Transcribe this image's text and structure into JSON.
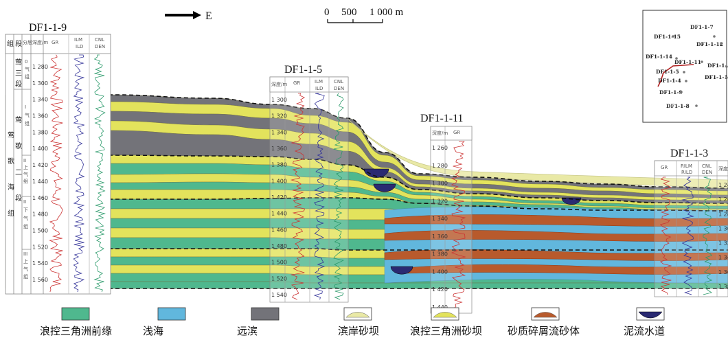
{
  "colors": {
    "front": "#4fb88e",
    "shallow": "#61b7dd",
    "prodelta": "#737379",
    "beach": "#e9e9a6",
    "deltabar": "#e3e35c",
    "debris": "#b85a2c",
    "channel": "#2a2a72",
    "deltabar_stroke": "#b8b83a",
    "beach_stroke": "#c9c98a"
  },
  "direction": {
    "arrow_label": "E"
  },
  "scale_bar": {
    "labels": [
      "0",
      "500",
      "1 000 m"
    ]
  },
  "wells": [
    {
      "id": "DF1-1-9",
      "depths": [
        "1 280",
        "1 300",
        "1 340",
        "1 360",
        "1 380",
        "1 400",
        "1 420",
        "1 440",
        "1 460",
        "1 480",
        "1 500",
        "1 520",
        "1 540",
        "1 560"
      ]
    },
    {
      "id": "DF1-1-5",
      "depths": [
        "1 300",
        "1 320",
        "1 340",
        "1 360",
        "1 380",
        "1 400",
        "1 420",
        "1 440",
        "1 460",
        "1 480",
        "1 500",
        "1 520",
        "1 540"
      ]
    },
    {
      "id": "DF1-1-11",
      "depths": [
        "1 260",
        "1 280",
        "1 300",
        "1 320",
        "1 340",
        "1 360",
        "1 380",
        "1 400",
        "1 420",
        "1 440"
      ]
    },
    {
      "id": "DF1-1-3",
      "depths": [
        "1 24",
        "1 26",
        "1 28",
        "1 30",
        "1 32",
        "1 34",
        "1 36",
        "1 38"
      ]
    }
  ],
  "header_columns": {
    "col1": "组",
    "col2": "段",
    "col3": "分层",
    "depth": "深度/m",
    "gr": "GR",
    "ilm": "ILM",
    "ild": "ILD",
    "cnl": "CNL",
    "den": "DEN",
    "rild": "RILD",
    "rilm": "RILM"
  },
  "stratigraphy": {
    "formation": [
      "莺",
      "歌",
      "海",
      "组"
    ],
    "member_top": [
      "莺",
      "三",
      "段"
    ],
    "member": [
      "莺",
      "歌",
      "二",
      "段"
    ],
    "gas_groups": [
      [
        "0",
        "气",
        "组"
      ],
      [
        "I",
        "气",
        "组"
      ],
      [
        "II",
        "上",
        "气",
        "组"
      ],
      [
        "II",
        "下",
        "气",
        "组"
      ],
      [
        "III",
        "上",
        "气",
        "组"
      ]
    ]
  },
  "inset_map": {
    "wells": [
      "DF1-1-7",
      "DF1-1-15",
      "DF1-1-12",
      "DF1-1-14",
      "DF1-1-11",
      "DF1-1-",
      "DF1-1-5",
      "DF1-1-4",
      "DF1-1-1",
      "DF1-1-9",
      "DF1-1-8"
    ]
  },
  "legend": [
    {
      "key": "front",
      "label": "浪控三角洲前缘"
    },
    {
      "key": "shallow",
      "label": "浅海"
    },
    {
      "key": "prodelta",
      "label": "远滨"
    },
    {
      "key": "beach",
      "label": "滨岸砂坝"
    },
    {
      "key": "deltabar",
      "label": "浪控三角洲砂坝"
    },
    {
      "key": "debris",
      "label": "砂质碎屑流砂体"
    },
    {
      "key": "channel",
      "label": "泥流水道"
    }
  ]
}
